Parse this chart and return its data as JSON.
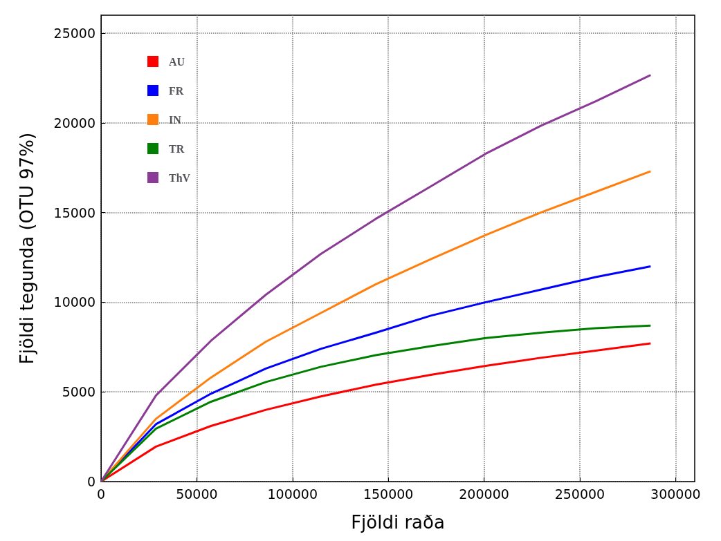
{
  "chart_data": {
    "type": "line",
    "xlabel": "Fjöldi raða",
    "ylabel": "Fjöldi tegunda (OTU 97%)",
    "x": [
      0,
      28700,
      57400,
      86100,
      114800,
      143500,
      172200,
      200900,
      229600,
      258300,
      287000
    ],
    "series": [
      {
        "name": "AU",
        "color": "#ff0000",
        "values": [
          0,
          1950,
          3100,
          4000,
          4750,
          5400,
          5950,
          6450,
          6900,
          7300,
          7700
        ]
      },
      {
        "name": "FR",
        "color": "#0000ff",
        "values": [
          0,
          3200,
          4900,
          6300,
          7400,
          8300,
          9250,
          10000,
          10700,
          11400,
          12000
        ]
      },
      {
        "name": "IN",
        "color": "#ff7f0e",
        "values": [
          0,
          3500,
          5800,
          7800,
          9400,
          11000,
          12400,
          13750,
          15000,
          16150,
          17300
        ]
      },
      {
        "name": "TR",
        "color": "#008000",
        "values": [
          0,
          2950,
          4450,
          5550,
          6400,
          7050,
          7550,
          8000,
          8300,
          8550,
          8700
        ]
      },
      {
        "name": "ThV",
        "color": "#8b3a96",
        "values": [
          0,
          4800,
          7850,
          10420,
          12690,
          14650,
          16460,
          18280,
          19830,
          21200,
          22660
        ]
      }
    ],
    "xlim": [
      0,
      310000
    ],
    "xticks": [
      0,
      50000,
      100000,
      150000,
      200000,
      250000,
      300000
    ],
    "ylim": [
      0,
      26000
    ],
    "yticks": [
      0,
      5000,
      10000,
      15000,
      20000,
      25000
    ],
    "grid": true,
    "legend": "top left",
    "marker": "none",
    "line_style": "solid"
  }
}
